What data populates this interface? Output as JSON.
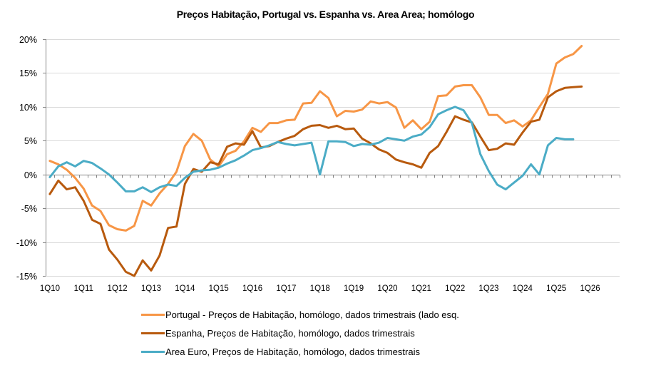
{
  "chart_data": {
    "type": "line",
    "title": "Preços Habitação, Portugal vs. Espanha vs. Area Area; homólogo",
    "xlabel": "",
    "ylabel": "",
    "ylim": [
      -15,
      20
    ],
    "yticks": [
      20,
      15,
      10,
      5,
      0,
      -5,
      -10,
      -15
    ],
    "ytick_labels": [
      "20%",
      "15%",
      "10%",
      "5%",
      "0%",
      "-5%",
      "-10%",
      "-15%"
    ],
    "x_categories_count": 68,
    "xtick_labels": [
      "1Q10",
      "1Q11",
      "1Q12",
      "1Q13",
      "1Q14",
      "1Q15",
      "1Q16",
      "1Q17",
      "1Q18",
      "1Q19",
      "1Q20",
      "1Q21",
      "1Q22",
      "1Q23",
      "1Q24",
      "1Q25",
      "1Q26"
    ],
    "grid": true,
    "legend_position": "bottom",
    "series": [
      {
        "name": "Portugal - Preços de Habitação, homólogo, dados trimestrais (lado esq.",
        "color": "#F79646",
        "values": [
          2.0,
          1.5,
          0.7,
          -0.5,
          -2.1,
          -4.6,
          -5.4,
          -7.5,
          -8.1,
          -8.3,
          -7.6,
          -3.9,
          -4.6,
          -2.8,
          -1.4,
          0.4,
          4.2,
          6.0,
          5.0,
          2.2,
          1.2,
          3.0,
          3.5,
          4.9,
          6.9,
          6.3,
          7.6,
          7.6,
          8.0,
          8.1,
          10.5,
          10.6,
          12.3,
          11.3,
          8.6,
          9.4,
          9.3,
          9.6,
          10.8,
          10.5,
          10.7,
          9.9,
          6.9,
          8.0,
          6.7,
          7.8,
          11.6,
          11.7,
          13.0,
          13.2,
          13.2,
          11.4,
          8.8,
          8.8,
          7.6,
          8.0,
          7.1,
          8.0,
          10.0,
          11.9,
          16.4,
          17.3,
          17.8,
          19.0
        ]
      },
      {
        "name": "Espanha, Preços de Habitação, homólogo, dados trimestrais",
        "color": "#B85A0E",
        "values": [
          -2.9,
          -0.9,
          -2.2,
          -1.9,
          -3.9,
          -6.7,
          -7.3,
          -11.1,
          -12.6,
          -14.4,
          -15.0,
          -12.7,
          -14.2,
          -12.0,
          -7.9,
          -7.7,
          -1.4,
          0.8,
          0.4,
          1.8,
          1.5,
          4.1,
          4.6,
          4.4,
          6.4,
          4.0,
          4.2,
          4.8,
          5.3,
          5.7,
          6.7,
          7.2,
          7.3,
          6.9,
          7.2,
          6.7,
          6.8,
          5.3,
          4.6,
          3.7,
          3.2,
          2.2,
          1.8,
          1.5,
          1.0,
          3.2,
          4.2,
          6.3,
          8.6,
          8.1,
          7.7,
          5.6,
          3.6,
          3.8,
          4.6,
          4.4,
          6.2,
          7.8,
          8.1,
          11.4,
          12.3,
          12.8,
          12.9,
          13.0
        ]
      },
      {
        "name": "Area Euro, Preços de Habitação, homólogo, dados trimestrais",
        "color": "#4BACC6",
        "values": [
          -0.4,
          1.2,
          1.8,
          1.2,
          2.0,
          1.7,
          0.9,
          0.0,
          -1.2,
          -2.5,
          -2.5,
          -1.9,
          -2.6,
          -1.9,
          -1.5,
          -1.7,
          -0.5,
          0.4,
          0.6,
          0.7,
          1.0,
          1.6,
          2.1,
          2.8,
          3.6,
          3.9,
          4.3,
          4.8,
          4.5,
          4.3,
          4.5,
          4.7,
          0.0,
          4.9,
          4.9,
          4.8,
          4.2,
          4.5,
          4.4,
          4.7,
          5.4,
          5.2,
          5.0,
          5.6,
          5.9,
          7.0,
          8.9,
          9.5,
          10.0,
          9.5,
          7.6,
          3.0,
          0.5,
          -1.5,
          -2.2,
          -1.2,
          -0.2,
          1.5,
          0.0,
          4.3,
          5.4,
          5.2,
          5.2
        ]
      }
    ]
  }
}
